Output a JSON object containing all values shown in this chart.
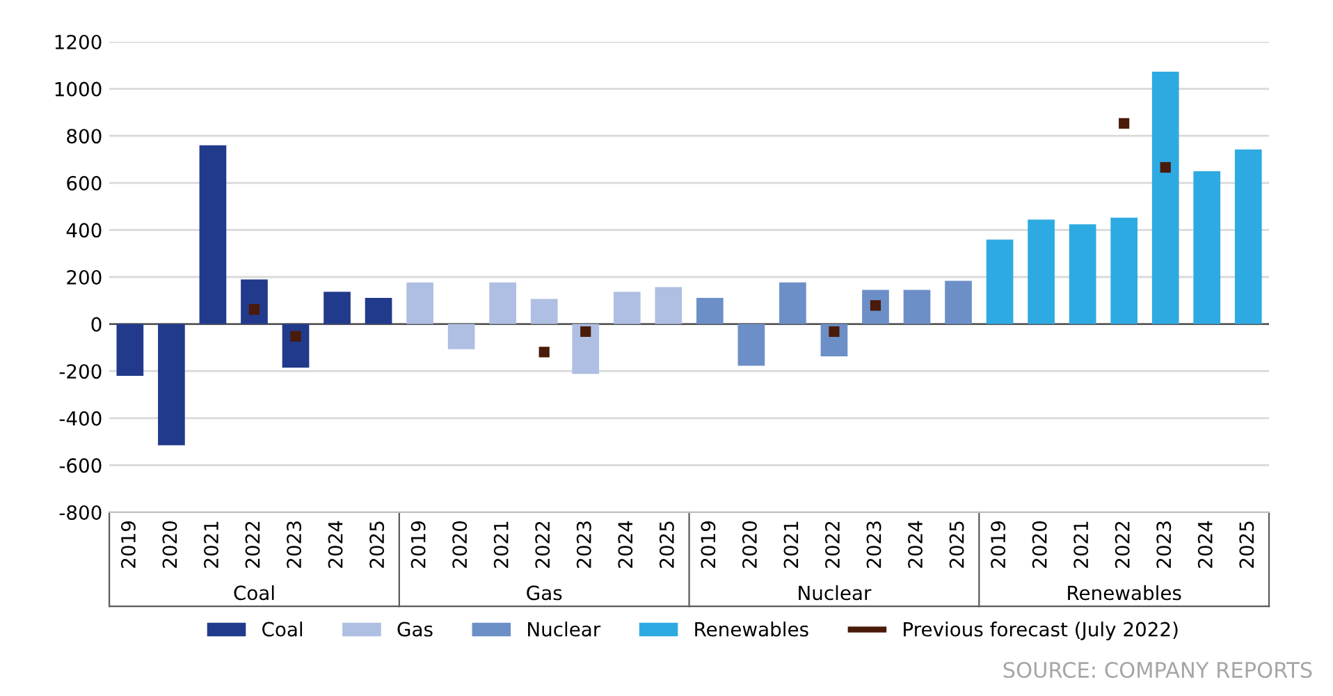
{
  "chart_data": {
    "type": "bar",
    "categories": [
      "2019",
      "2020",
      "2021",
      "2022",
      "2023",
      "2024",
      "2025",
      "2019",
      "2020",
      "2021",
      "2022",
      "2023",
      "2024",
      "2025",
      "2019",
      "2020",
      "2021",
      "2022",
      "2023",
      "2024",
      "2025",
      "2019",
      "2020",
      "2021",
      "2022",
      "2023",
      "2024",
      "2025"
    ],
    "series": [
      {
        "name": "Coal",
        "color": "#213a8b",
        "values": [
          -220,
          -515,
          760,
          190,
          -185,
          137,
          111,
          null,
          null,
          null,
          null,
          null,
          null,
          null,
          null,
          null,
          null,
          null,
          null,
          null,
          null,
          null,
          null,
          null,
          null,
          null,
          null,
          null
        ]
      },
      {
        "name": "Gas",
        "color": "#afbfe3",
        "values": [
          null,
          null,
          null,
          null,
          null,
          null,
          null,
          177,
          -107,
          177,
          107,
          -212,
          137,
          157,
          null,
          null,
          null,
          null,
          null,
          null,
          null,
          null,
          null,
          null,
          null,
          null,
          null,
          null
        ]
      },
      {
        "name": "Nuclear",
        "color": "#6d8fc8",
        "values": [
          null,
          null,
          null,
          null,
          null,
          null,
          null,
          null,
          null,
          null,
          null,
          null,
          null,
          null,
          111,
          -177,
          177,
          -137,
          145,
          145,
          184,
          null,
          null,
          null,
          null,
          null,
          null,
          null
        ]
      },
      {
        "name": "Renewables",
        "color": "#2eaae2",
        "values": [
          null,
          null,
          null,
          null,
          null,
          null,
          null,
          null,
          null,
          null,
          null,
          null,
          null,
          null,
          null,
          null,
          null,
          null,
          null,
          null,
          null,
          359,
          444,
          424,
          452,
          1073,
          650,
          742
        ]
      },
      {
        "name": "Previous forecast (July 2022)",
        "type": "scatter",
        "color": "#4a1a0a",
        "values": [
          null,
          null,
          null,
          62,
          -52,
          null,
          null,
          null,
          null,
          null,
          -119,
          -32,
          null,
          null,
          null,
          null,
          null,
          -32,
          79,
          null,
          null,
          null,
          null,
          null,
          853,
          666,
          null,
          null
        ]
      }
    ],
    "ylim": [
      -800,
      1200
    ],
    "yticks": [
      -800,
      -600,
      -400,
      -200,
      0,
      200,
      400,
      600,
      800,
      1000,
      1200
    ],
    "grid": "y",
    "legend": "bottom",
    "annotations": [
      "Coal",
      "Gas",
      "Nuclear",
      "Renewables",
      "SOURCE: COMPANY REPORTS"
    ]
  }
}
